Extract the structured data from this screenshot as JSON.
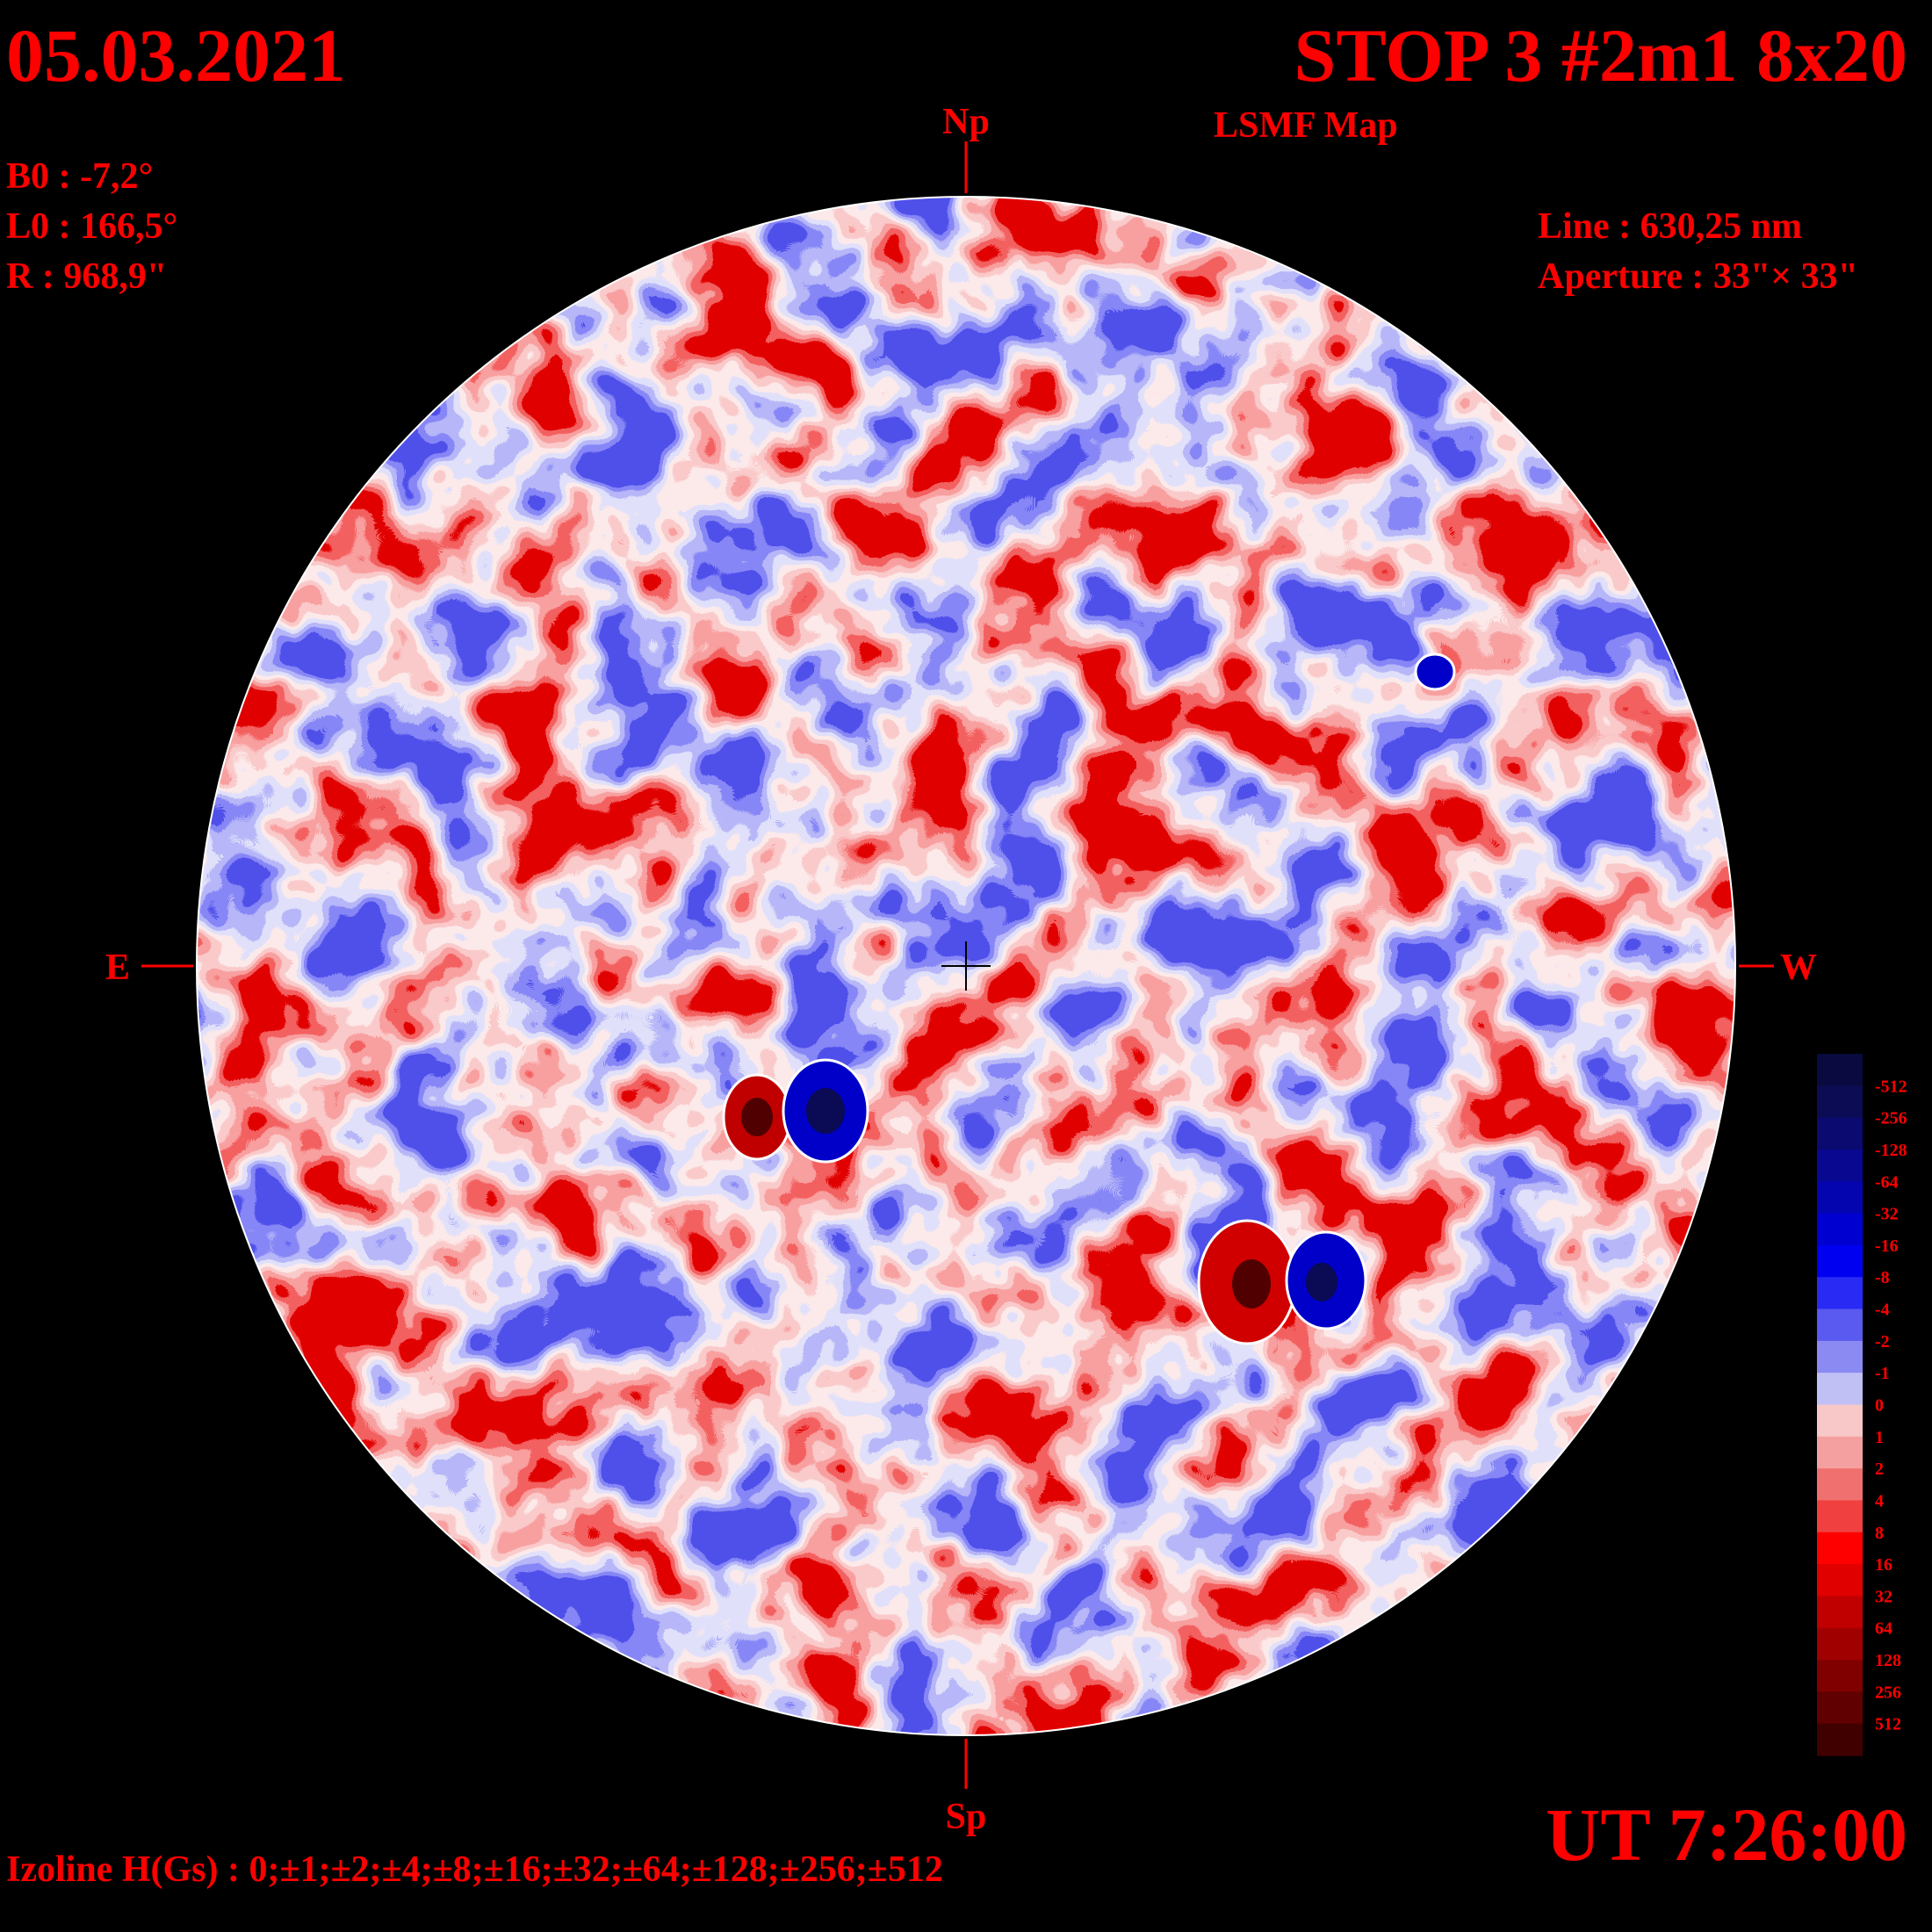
{
  "header": {
    "date": "05.03.2021",
    "title": "STOP 3 #2m1 8x20",
    "subtitle": "LSMF  Map"
  },
  "params": [
    "B0 : -7,2°",
    "L0 : 166,5°",
    "R  : 968,9\""
  ],
  "instrument": [
    "Line :  630,25 nm",
    "Aperture : 33\"× 33\""
  ],
  "directions": {
    "north": "Np",
    "south": "Sp",
    "east": "E",
    "west": "W"
  },
  "colorbar": {
    "labels": [
      "-512",
      "-256",
      "-128",
      "-64",
      "-32",
      "-16",
      "-8",
      "-4",
      "-2",
      "-1",
      "0",
      "1",
      "2",
      "4",
      "8",
      "16",
      "32",
      "64",
      "128",
      "256",
      "512"
    ],
    "colors": [
      "#0a0a40",
      "#0c0c55",
      "#0a0a70",
      "#080890",
      "#0505b0",
      "#0000d0",
      "#0000f0",
      "#2a2af5",
      "#5a5af0",
      "#8a8af2",
      "#c0c0f5",
      "#f8c8c8",
      "#f5a0a0",
      "#f07070",
      "#f04040",
      "#ff0000",
      "#e00000",
      "#c00000",
      "#a00000",
      "#800000",
      "#600000",
      "#400000"
    ]
  },
  "footer": {
    "isolines": "Izoline H(Gs) : 0;±1;±2;±4;±8;±16;±32;±64;±128;±256;±512",
    "time": "UT 7:26:00"
  }
}
